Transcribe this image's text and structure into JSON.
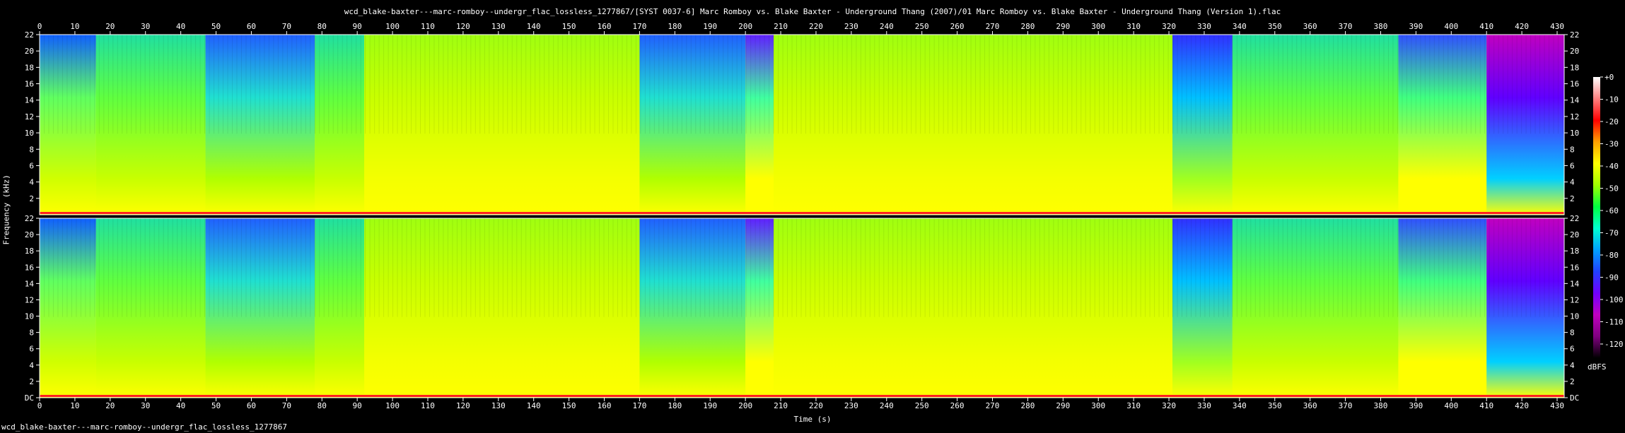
{
  "window": {
    "title": "wcd_blake-baxter---marc-romboy--undergr_flac_lossless_1277867/[SYST 0037-6] Marc Romboy vs. Blake Baxter - Underground Thang (2007)/01 Marc Romboy vs. Blake Baxter - Underground Thang (Version 1).flac",
    "footer": "wcd_blake-baxter---marc-romboy--undergr_flac_lossless_1277867"
  },
  "chart_data": {
    "type": "heatmap",
    "title": "wcd_blake-baxter---marc-romboy--undergr_flac_lossless_1277867/[SYST 0037-6] Marc Romboy vs. Blake Baxter - Underground Thang (2007)/01 Marc Romboy vs. Blake Baxter - Underground Thang (Version 1).flac",
    "xlabel": "Time (s)",
    "ylabel": "Frequency (kHz)",
    "xlim": [
      0,
      432
    ],
    "ylim": [
      0,
      22
    ],
    "x_ticks": [
      "0",
      "10",
      "20",
      "30",
      "40",
      "50",
      "60",
      "70",
      "80",
      "90",
      "100",
      "110",
      "120",
      "130",
      "140",
      "150",
      "160",
      "170",
      "180",
      "190",
      "200",
      "210",
      "220",
      "230",
      "240",
      "250",
      "260",
      "270",
      "280",
      "290",
      "300",
      "310",
      "320",
      "330",
      "340",
      "350",
      "360",
      "370",
      "380",
      "390",
      "400",
      "410",
      "420",
      "430"
    ],
    "y_ticks": [
      "DC",
      "2",
      "4",
      "6",
      "8",
      "10",
      "12",
      "14",
      "16",
      "18",
      "20",
      "22"
    ],
    "channels": 2,
    "colorbar": {
      "label": "dBFS",
      "ticks": [
        "+0",
        "-10",
        "-20",
        "-30",
        "-40",
        "-50",
        "-60",
        "-70",
        "-80",
        "-90",
        "-100",
        "-110",
        "-120"
      ],
      "range": [
        -120,
        0
      ],
      "colors": [
        "#ffffff",
        "#ff8080",
        "#ff0000",
        "#ffa000",
        "#ffff00",
        "#a0ff00",
        "#00ff40",
        "#00ffd0",
        "#00a0ff",
        "#2040ff",
        "#7000ff",
        "#c000c0",
        "#800080",
        "#000000"
      ]
    },
    "segments": [
      {
        "t": [
          0,
          16
        ],
        "level": "loud-sparse",
        "top_kHz": 22
      },
      {
        "t": [
          16,
          47
        ],
        "level": "mid",
        "top_kHz": 22
      },
      {
        "t": [
          47,
          78
        ],
        "level": "quiet-hf",
        "top_kHz": 22
      },
      {
        "t": [
          78,
          92
        ],
        "level": "mid",
        "top_kHz": 22
      },
      {
        "t": [
          92,
          170
        ],
        "level": "loud",
        "top_kHz": 22
      },
      {
        "t": [
          170,
          200
        ],
        "level": "quiet-hf",
        "top_kHz": 22
      },
      {
        "t": [
          200,
          208
        ],
        "level": "breakdown",
        "top_kHz": 18
      },
      {
        "t": [
          208,
          321
        ],
        "level": "loud",
        "top_kHz": 22
      },
      {
        "t": [
          321,
          338
        ],
        "level": "quiet",
        "top_kHz": 22
      },
      {
        "t": [
          338,
          385
        ],
        "level": "mid",
        "top_kHz": 22
      },
      {
        "t": [
          385,
          410
        ],
        "level": "sweep",
        "top_kHz": 22
      },
      {
        "t": [
          410,
          432
        ],
        "level": "fade",
        "top_kHz": 22
      }
    ]
  }
}
